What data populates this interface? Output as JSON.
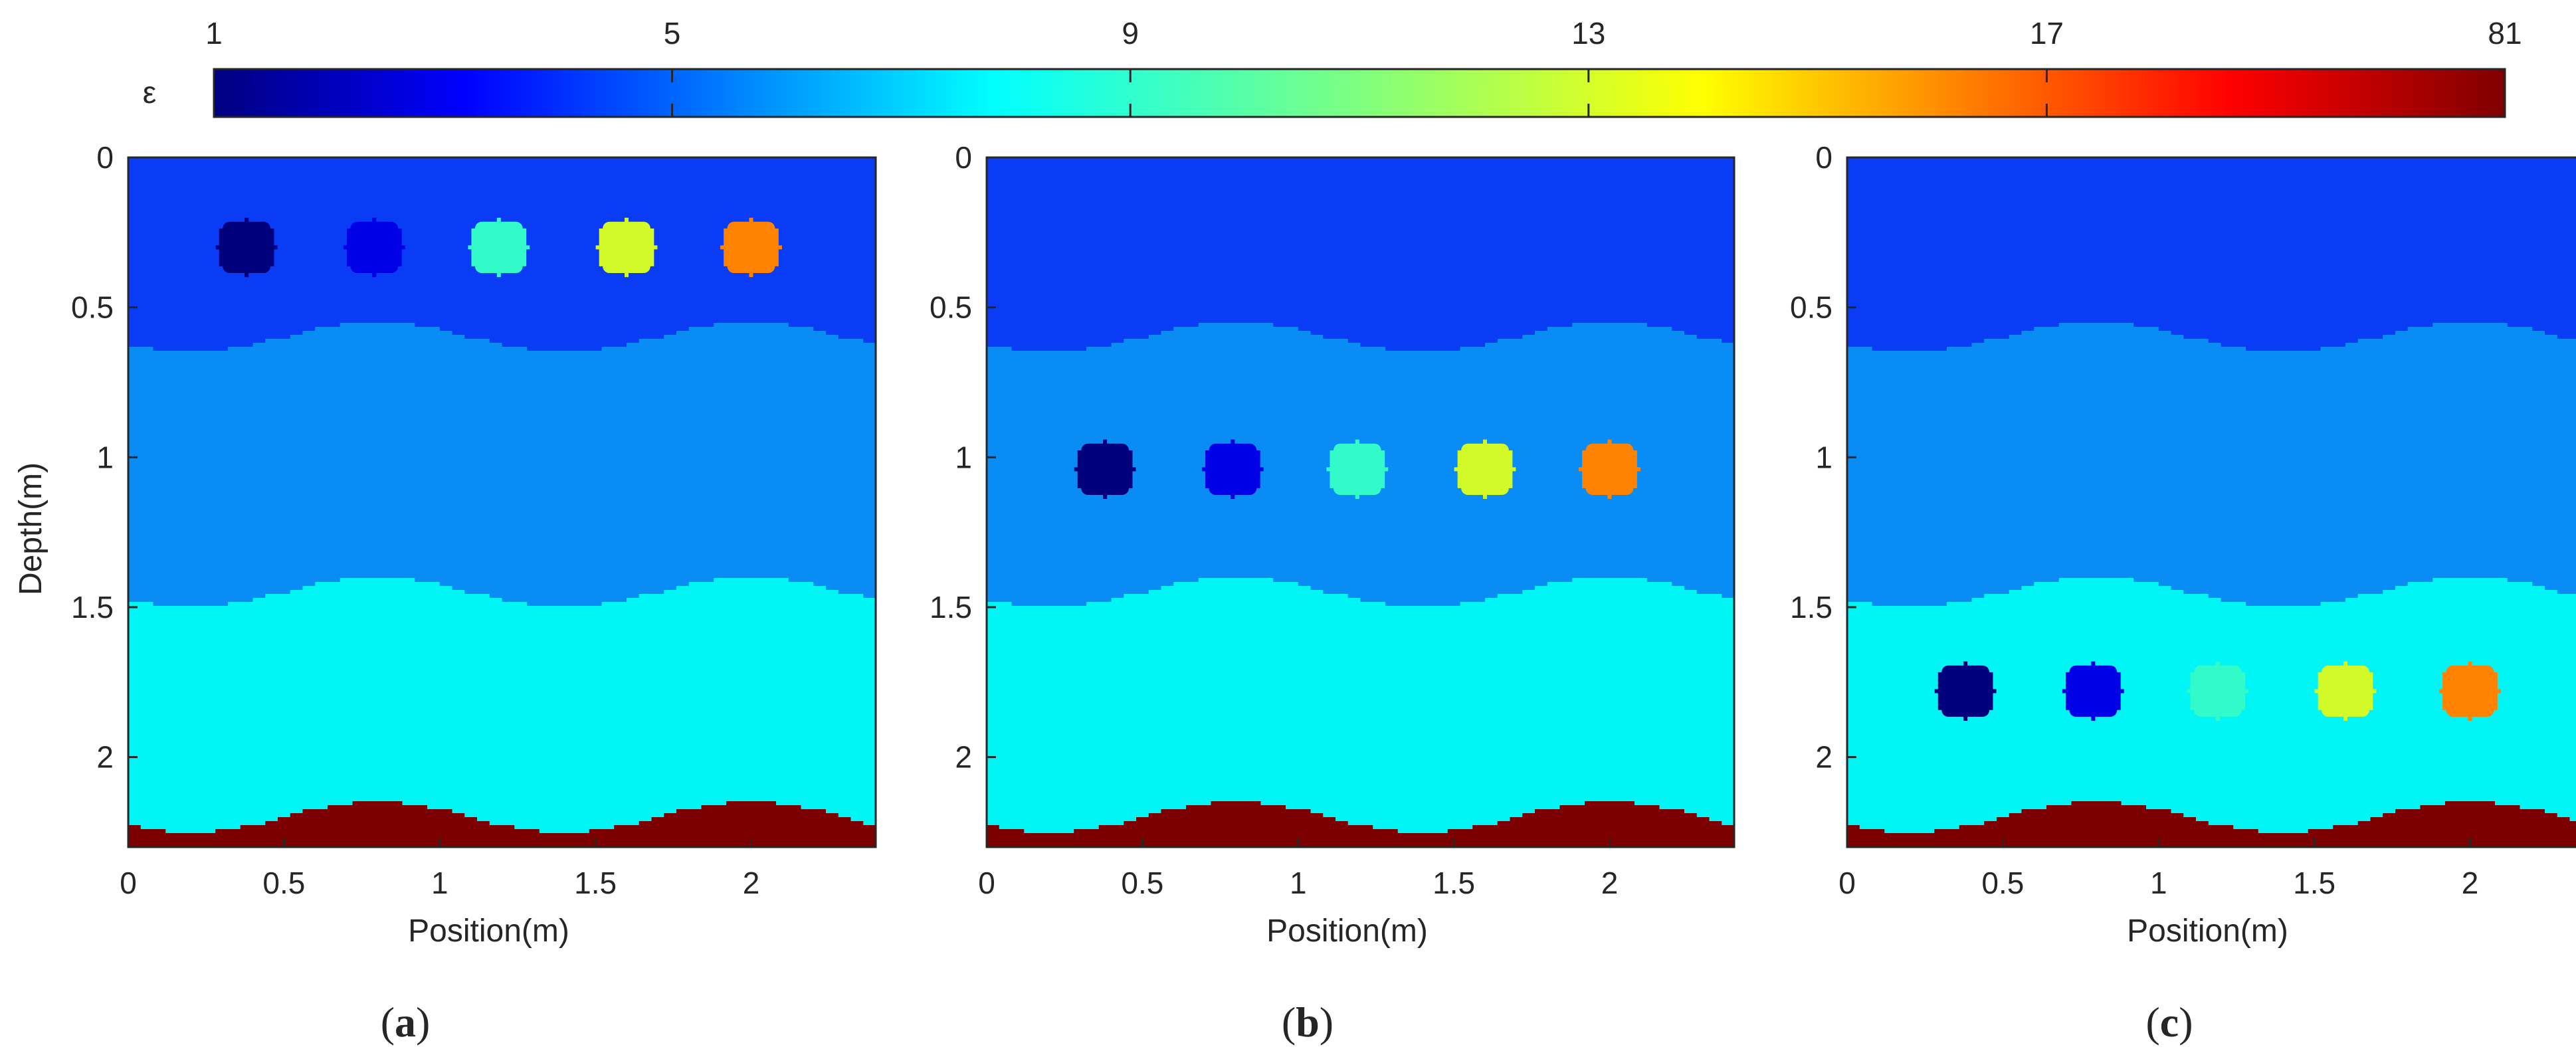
{
  "chart_data": {
    "type": "heatmap",
    "colorbar": {
      "label": "ε",
      "ticks": [
        "1",
        "5",
        "9",
        "13",
        "17",
        "81"
      ],
      "colormap": "jet"
    },
    "panels": [
      {
        "id": "a",
        "caption_letter": "a",
        "xlabel": "Position(m)",
        "ylabel": "Depth(m)",
        "xlim": [
          0,
          2.4
        ],
        "ylim": [
          0,
          2.3
        ],
        "xticks": [
          {
            "v": 0,
            "label": "0"
          },
          {
            "v": 0.5,
            "label": "0.5"
          },
          {
            "v": 1,
            "label": "1"
          },
          {
            "v": 1.5,
            "label": "1.5"
          },
          {
            "v": 2,
            "label": "2"
          }
        ],
        "yticks": [
          {
            "v": 0,
            "label": "0"
          },
          {
            "v": 0.5,
            "label": "0.5"
          },
          {
            "v": 1,
            "label": "1"
          },
          {
            "v": 1.5,
            "label": "1.5"
          },
          {
            "v": 2,
            "label": "2"
          }
        ],
        "targets_depth": 0.3
      },
      {
        "id": "b",
        "caption_letter": "b",
        "xlabel": "Position(m)",
        "ylabel": "",
        "xlim": [
          0,
          2.4
        ],
        "ylim": [
          0,
          2.3
        ],
        "xticks": [
          {
            "v": 0,
            "label": "0"
          },
          {
            "v": 0.5,
            "label": "0.5"
          },
          {
            "v": 1,
            "label": "1"
          },
          {
            "v": 1.5,
            "label": "1.5"
          },
          {
            "v": 2,
            "label": "2"
          }
        ],
        "yticks": [
          {
            "v": 0,
            "label": "0"
          },
          {
            "v": 0.5,
            "label": "0.5"
          },
          {
            "v": 1,
            "label": "1"
          },
          {
            "v": 1.5,
            "label": "1.5"
          },
          {
            "v": 2,
            "label": "2"
          }
        ],
        "targets_depth": 1.04
      },
      {
        "id": "c",
        "caption_letter": "c",
        "xlabel": "Position(m)",
        "ylabel": "",
        "xlim": [
          0,
          2.4
        ],
        "ylim": [
          0,
          2.3
        ],
        "xticks": [
          {
            "v": 0,
            "label": "0"
          },
          {
            "v": 0.5,
            "label": "0.5"
          },
          {
            "v": 1,
            "label": "1"
          },
          {
            "v": 1.5,
            "label": "1.5"
          },
          {
            "v": 2,
            "label": "2"
          }
        ],
        "yticks": [
          {
            "v": 0,
            "label": "0"
          },
          {
            "v": 0.5,
            "label": "0.5"
          },
          {
            "v": 1,
            "label": "1"
          },
          {
            "v": 1.5,
            "label": "1.5"
          },
          {
            "v": 2,
            "label": "2"
          }
        ],
        "targets_depth": 1.78
      }
    ],
    "layers": [
      {
        "name": "layer-1",
        "color": "#0a3cf5",
        "base_depth": 0.6,
        "wave_amplitude": 0.05
      },
      {
        "name": "layer-2",
        "color": "#0a8cf5",
        "base_depth": 1.45,
        "wave_amplitude": 0.05
      },
      {
        "name": "layer-3",
        "color": "#00f5f5",
        "base_depth": 2.2,
        "wave_amplitude": 0.05
      },
      {
        "name": "layer-4",
        "color": "#7d0000",
        "base_depth": 2.3,
        "wave_amplitude": 0
      }
    ],
    "wave_period": 1.2,
    "targets": [
      {
        "x": 0.38,
        "color": "#00007d",
        "radius": 0.09
      },
      {
        "x": 0.79,
        "color": "#0000e6",
        "radius": 0.09
      },
      {
        "x": 1.19,
        "color": "#32fac8",
        "radius": 0.09
      },
      {
        "x": 1.6,
        "color": "#d2fa28",
        "radius": 0.09
      },
      {
        "x": 2.0,
        "color": "#ff8200",
        "radius": 0.09
      }
    ]
  }
}
